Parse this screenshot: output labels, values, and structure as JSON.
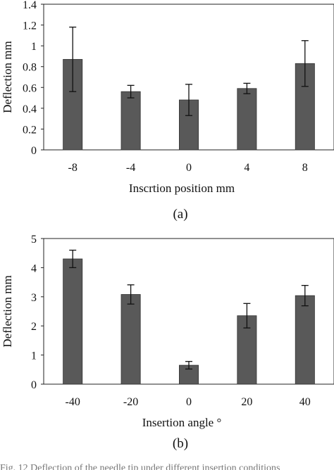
{
  "chart_data": [
    {
      "type": "bar",
      "panel": "(a)",
      "categories": [
        "-8",
        "-4",
        "0",
        "4",
        "8"
      ],
      "values": [
        0.87,
        0.56,
        0.48,
        0.59,
        0.83
      ],
      "errors": [
        0.31,
        0.06,
        0.15,
        0.05,
        0.22
      ],
      "xlabel": "Inscrtion position mm",
      "ylabel": "Deflection mm",
      "ylim": [
        0,
        1.4
      ],
      "yticks": [
        "0",
        "0.2",
        "0.4",
        "0.6",
        "0.8",
        "1",
        "1.2",
        "1.4"
      ],
      "bar_color": "#595959",
      "grid": false
    },
    {
      "type": "bar",
      "panel": "(b)",
      "categories": [
        "-40",
        "-20",
        "0",
        "20",
        "40"
      ],
      "values": [
        4.3,
        3.08,
        0.65,
        2.35,
        3.04
      ],
      "errors": [
        0.3,
        0.33,
        0.13,
        0.42,
        0.35
      ],
      "xlabel": "Insertion angle °",
      "ylabel": "Deflection mm",
      "ylim": [
        0,
        5
      ],
      "yticks": [
        "0",
        "1",
        "2",
        "3",
        "4",
        "5"
      ],
      "bar_color": "#595959",
      "grid": false
    }
  ],
  "captions": {
    "a": "(a)",
    "b": "(b)"
  },
  "bottom_text": "Fig. 12  Deflection of the needle tip under different insertion conditions"
}
